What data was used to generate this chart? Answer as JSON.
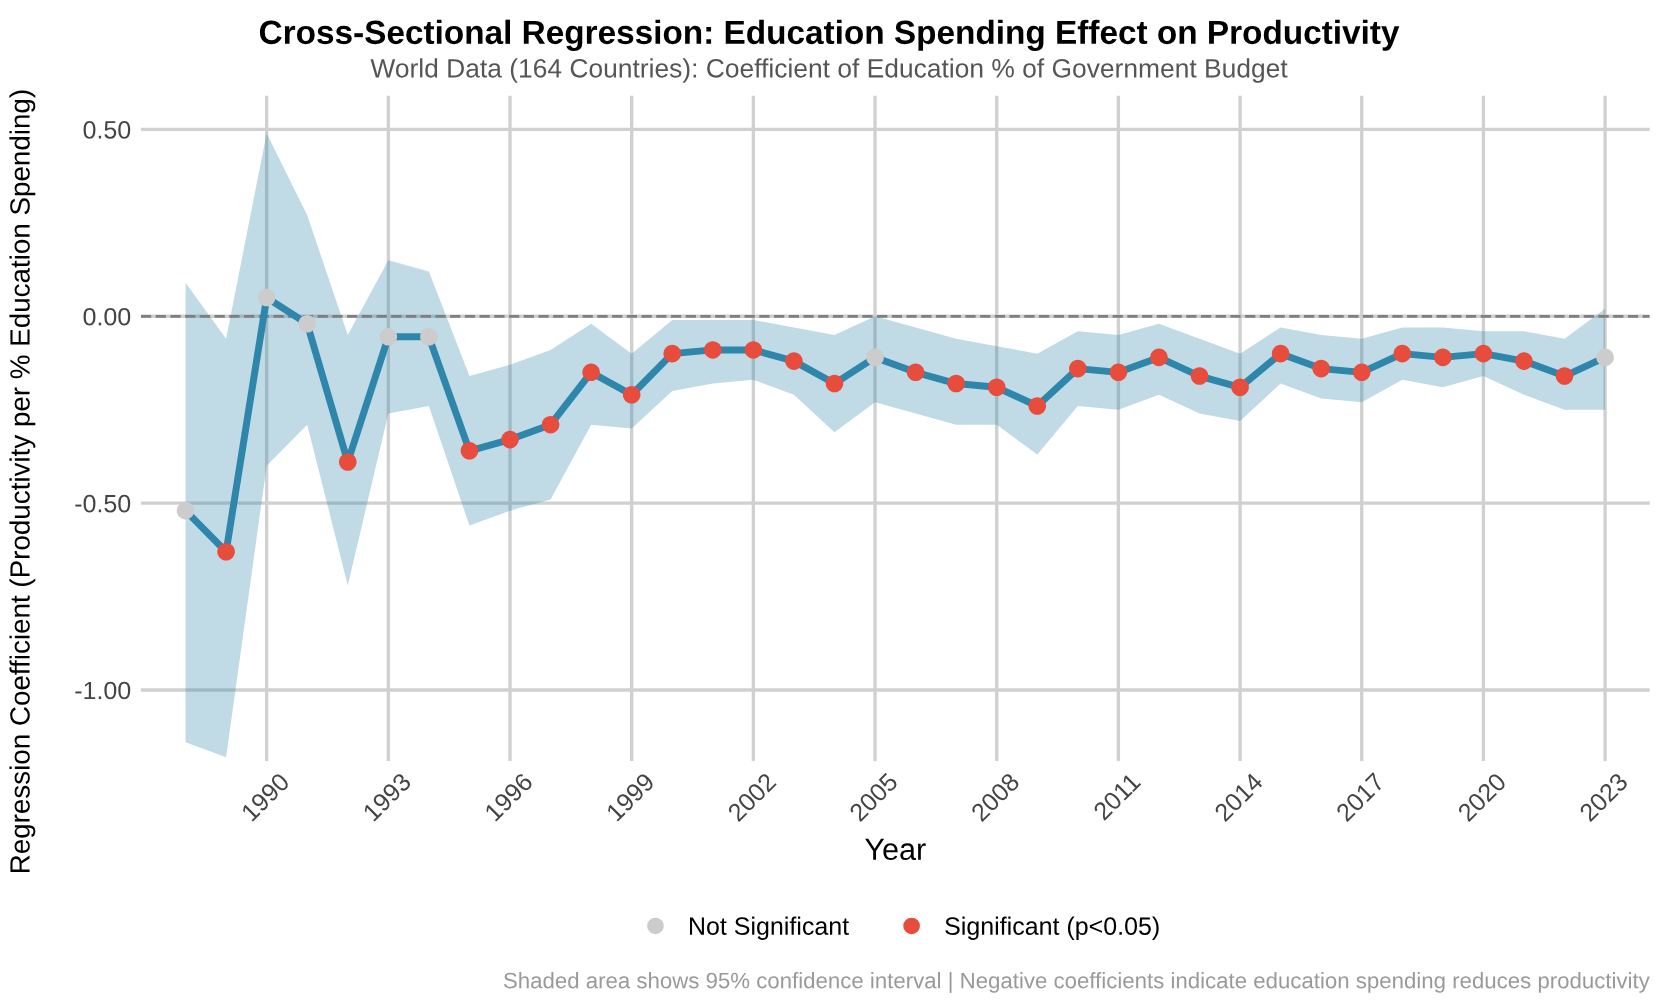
{
  "chart_data": {
    "type": "line",
    "title": "Cross-Sectional Regression: Education Spending Effect on Productivity",
    "subtitle": "World Data (164 Countries): Coefficient of Education % of Government Budget",
    "xlabel": "Year",
    "ylabel": "Regression Coefficient (Productivity per % Education Spending)",
    "annotations": [
      "Shaded area shows 95% confidence interval | Negative coefficients indicate education spending reduces productivity"
    ],
    "xlim": [
      1986.9,
      2024.1
    ],
    "xticks": [
      1990,
      1993,
      1996,
      1999,
      2002,
      2005,
      2008,
      2011,
      2014,
      2017,
      2020,
      2023
    ],
    "ylim": [
      -1.19,
      0.59
    ],
    "yticks": [
      {
        "value": 0.5,
        "label": "0.50"
      },
      {
        "value": 0.0,
        "label": "0.00"
      },
      {
        "value": -0.5,
        "label": "-0.50"
      },
      {
        "value": -1.0,
        "label": "-1.00"
      }
    ],
    "grid": true,
    "legend": "bottom",
    "ref_lines": [
      {
        "axis": "y",
        "value": 0,
        "color": "#7f7f7f",
        "line_style": "dashed"
      }
    ],
    "series": [
      {
        "color": "#2e86ab",
        "marker": "none",
        "line_style": "solid",
        "x": [
          1988,
          1989,
          1990,
          1991,
          1992,
          1993,
          1994,
          1995,
          1996,
          1997,
          1998,
          1999,
          2000,
          2001,
          2002,
          2003,
          2004,
          2005,
          2006,
          2007,
          2008,
          2009,
          2010,
          2011,
          2012,
          2013,
          2014,
          2015,
          2016,
          2017,
          2018,
          2019,
          2020,
          2021,
          2022,
          2023
        ],
        "values": [
          -0.52,
          -0.63,
          0.05,
          -0.02,
          -0.39,
          -0.055,
          -0.055,
          -0.36,
          -0.33,
          -0.29,
          -0.15,
          -0.21,
          -0.1,
          -0.09,
          -0.09,
          -0.12,
          -0.18,
          -0.11,
          -0.15,
          -0.18,
          -0.19,
          -0.24,
          -0.14,
          -0.15,
          -0.11,
          -0.16,
          -0.19,
          -0.1,
          -0.14,
          -0.15,
          -0.1,
          -0.11,
          -0.1,
          -0.12,
          -0.16,
          -0.11
        ],
        "upper": [
          0.09,
          -0.06,
          0.49,
          0.27,
          -0.05,
          0.15,
          0.12,
          -0.16,
          -0.13,
          -0.09,
          -0.02,
          -0.1,
          -0.01,
          -0.01,
          -0.01,
          -0.03,
          -0.05,
          0.0,
          -0.03,
          -0.06,
          -0.08,
          -0.1,
          -0.04,
          -0.05,
          -0.02,
          -0.06,
          -0.1,
          -0.03,
          -0.05,
          -0.06,
          -0.03,
          -0.03,
          -0.04,
          -0.04,
          -0.06,
          0.02
        ],
        "lower": [
          -1.14,
          -1.18,
          -0.4,
          -0.29,
          -0.72,
          -0.26,
          -0.24,
          -0.56,
          -0.52,
          -0.49,
          -0.29,
          -0.3,
          -0.2,
          -0.18,
          -0.17,
          -0.21,
          -0.31,
          -0.23,
          -0.26,
          -0.29,
          -0.29,
          -0.37,
          -0.24,
          -0.25,
          -0.21,
          -0.26,
          -0.28,
          -0.18,
          -0.22,
          -0.23,
          -0.17,
          -0.19,
          -0.16,
          -0.21,
          -0.25,
          -0.25
        ]
      },
      {
        "type": "scatter",
        "name": "Not Significant",
        "color": "#cccccc",
        "marker": "circle",
        "x": [
          1988,
          1990,
          1991,
          1993,
          1994,
          2005,
          2023
        ],
        "values": [
          -0.52,
          0.05,
          -0.02,
          -0.055,
          -0.055,
          -0.11,
          -0.11
        ]
      },
      {
        "type": "scatter",
        "name": "Significant (p<0.05)",
        "color": "#e74c3c",
        "marker": "circle",
        "x": [
          1989,
          1992,
          1995,
          1996,
          1997,
          1998,
          1999,
          2000,
          2001,
          2002,
          2003,
          2004,
          2006,
          2007,
          2008,
          2009,
          2010,
          2011,
          2012,
          2013,
          2014,
          2015,
          2016,
          2017,
          2018,
          2019,
          2020,
          2021,
          2022
        ],
        "values": [
          -0.63,
          -0.39,
          -0.36,
          -0.33,
          -0.29,
          -0.15,
          -0.21,
          -0.1,
          -0.09,
          -0.09,
          -0.12,
          -0.18,
          -0.15,
          -0.18,
          -0.19,
          -0.24,
          -0.14,
          -0.15,
          -0.11,
          -0.16,
          -0.19,
          -0.1,
          -0.14,
          -0.15,
          -0.1,
          -0.11,
          -0.1,
          -0.12,
          -0.16
        ]
      }
    ]
  }
}
